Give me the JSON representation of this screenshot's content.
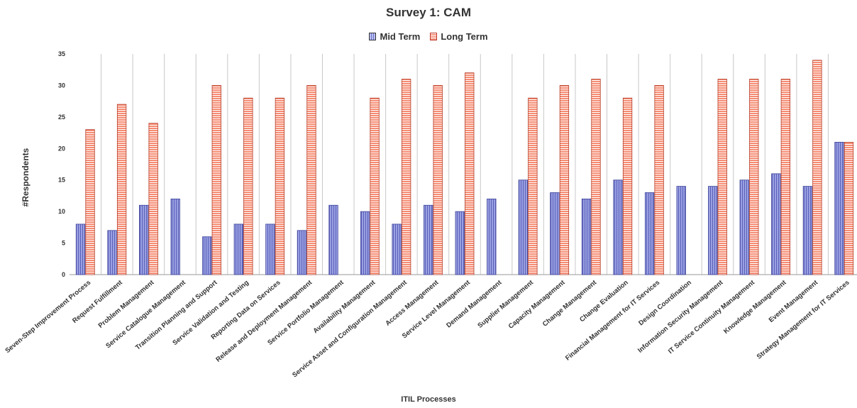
{
  "colors": {
    "mid_term_fill": "#8f96dc",
    "mid_term_stripe": "#5a61b8",
    "long_term_fill": "#f58b72",
    "long_term_stripe": "#ffffff",
    "long_term_border": "#b33a25",
    "grid": "#c8c8c8"
  },
  "chart_data": {
    "type": "bar",
    "title": "Survey 1: CAM",
    "xlabel": "ITIL Processes",
    "ylabel": "#Respondents",
    "ylim": [
      0,
      35
    ],
    "yticks": [
      0,
      5,
      10,
      15,
      20,
      25,
      30,
      35
    ],
    "grid": "vertical separators between categories",
    "legend_position": "top-center",
    "categories": [
      "Seven-Step Improvement Process",
      "Request Fulfillment",
      "Problem Management",
      "Service Catalogue Management",
      "Transition Planning and Support",
      "Service Validation and Testing",
      "Reporting Data on Services",
      "Release and Deployment Management",
      "Service Portfolio Management",
      "Availability Management",
      "Service Asset and Configuration Management",
      "Access Management",
      "Service Level Management",
      "Demand Management",
      "Supplier Management",
      "Capacity Management",
      "Change Management",
      "Change Evaluation",
      "Financial Management for IT Services",
      "Design Coordination",
      "Information Security Management",
      "IT Service Continuity Management",
      "Knowledge Management",
      "Event Management",
      "Strategy Management for IT Services"
    ],
    "series": [
      {
        "name": "Mid Term",
        "values": [
          8,
          7,
          11,
          12,
          6,
          8,
          8,
          7,
          11,
          10,
          8,
          11,
          10,
          12,
          15,
          13,
          12,
          15,
          13,
          14,
          14,
          15,
          16,
          14,
          21
        ]
      },
      {
        "name": "Long Term",
        "values": [
          23,
          27,
          24,
          0,
          30,
          28,
          28,
          30,
          0,
          28,
          31,
          30,
          32,
          0,
          28,
          30,
          31,
          28,
          30,
          0,
          31,
          31,
          31,
          34,
          21
        ]
      }
    ]
  }
}
